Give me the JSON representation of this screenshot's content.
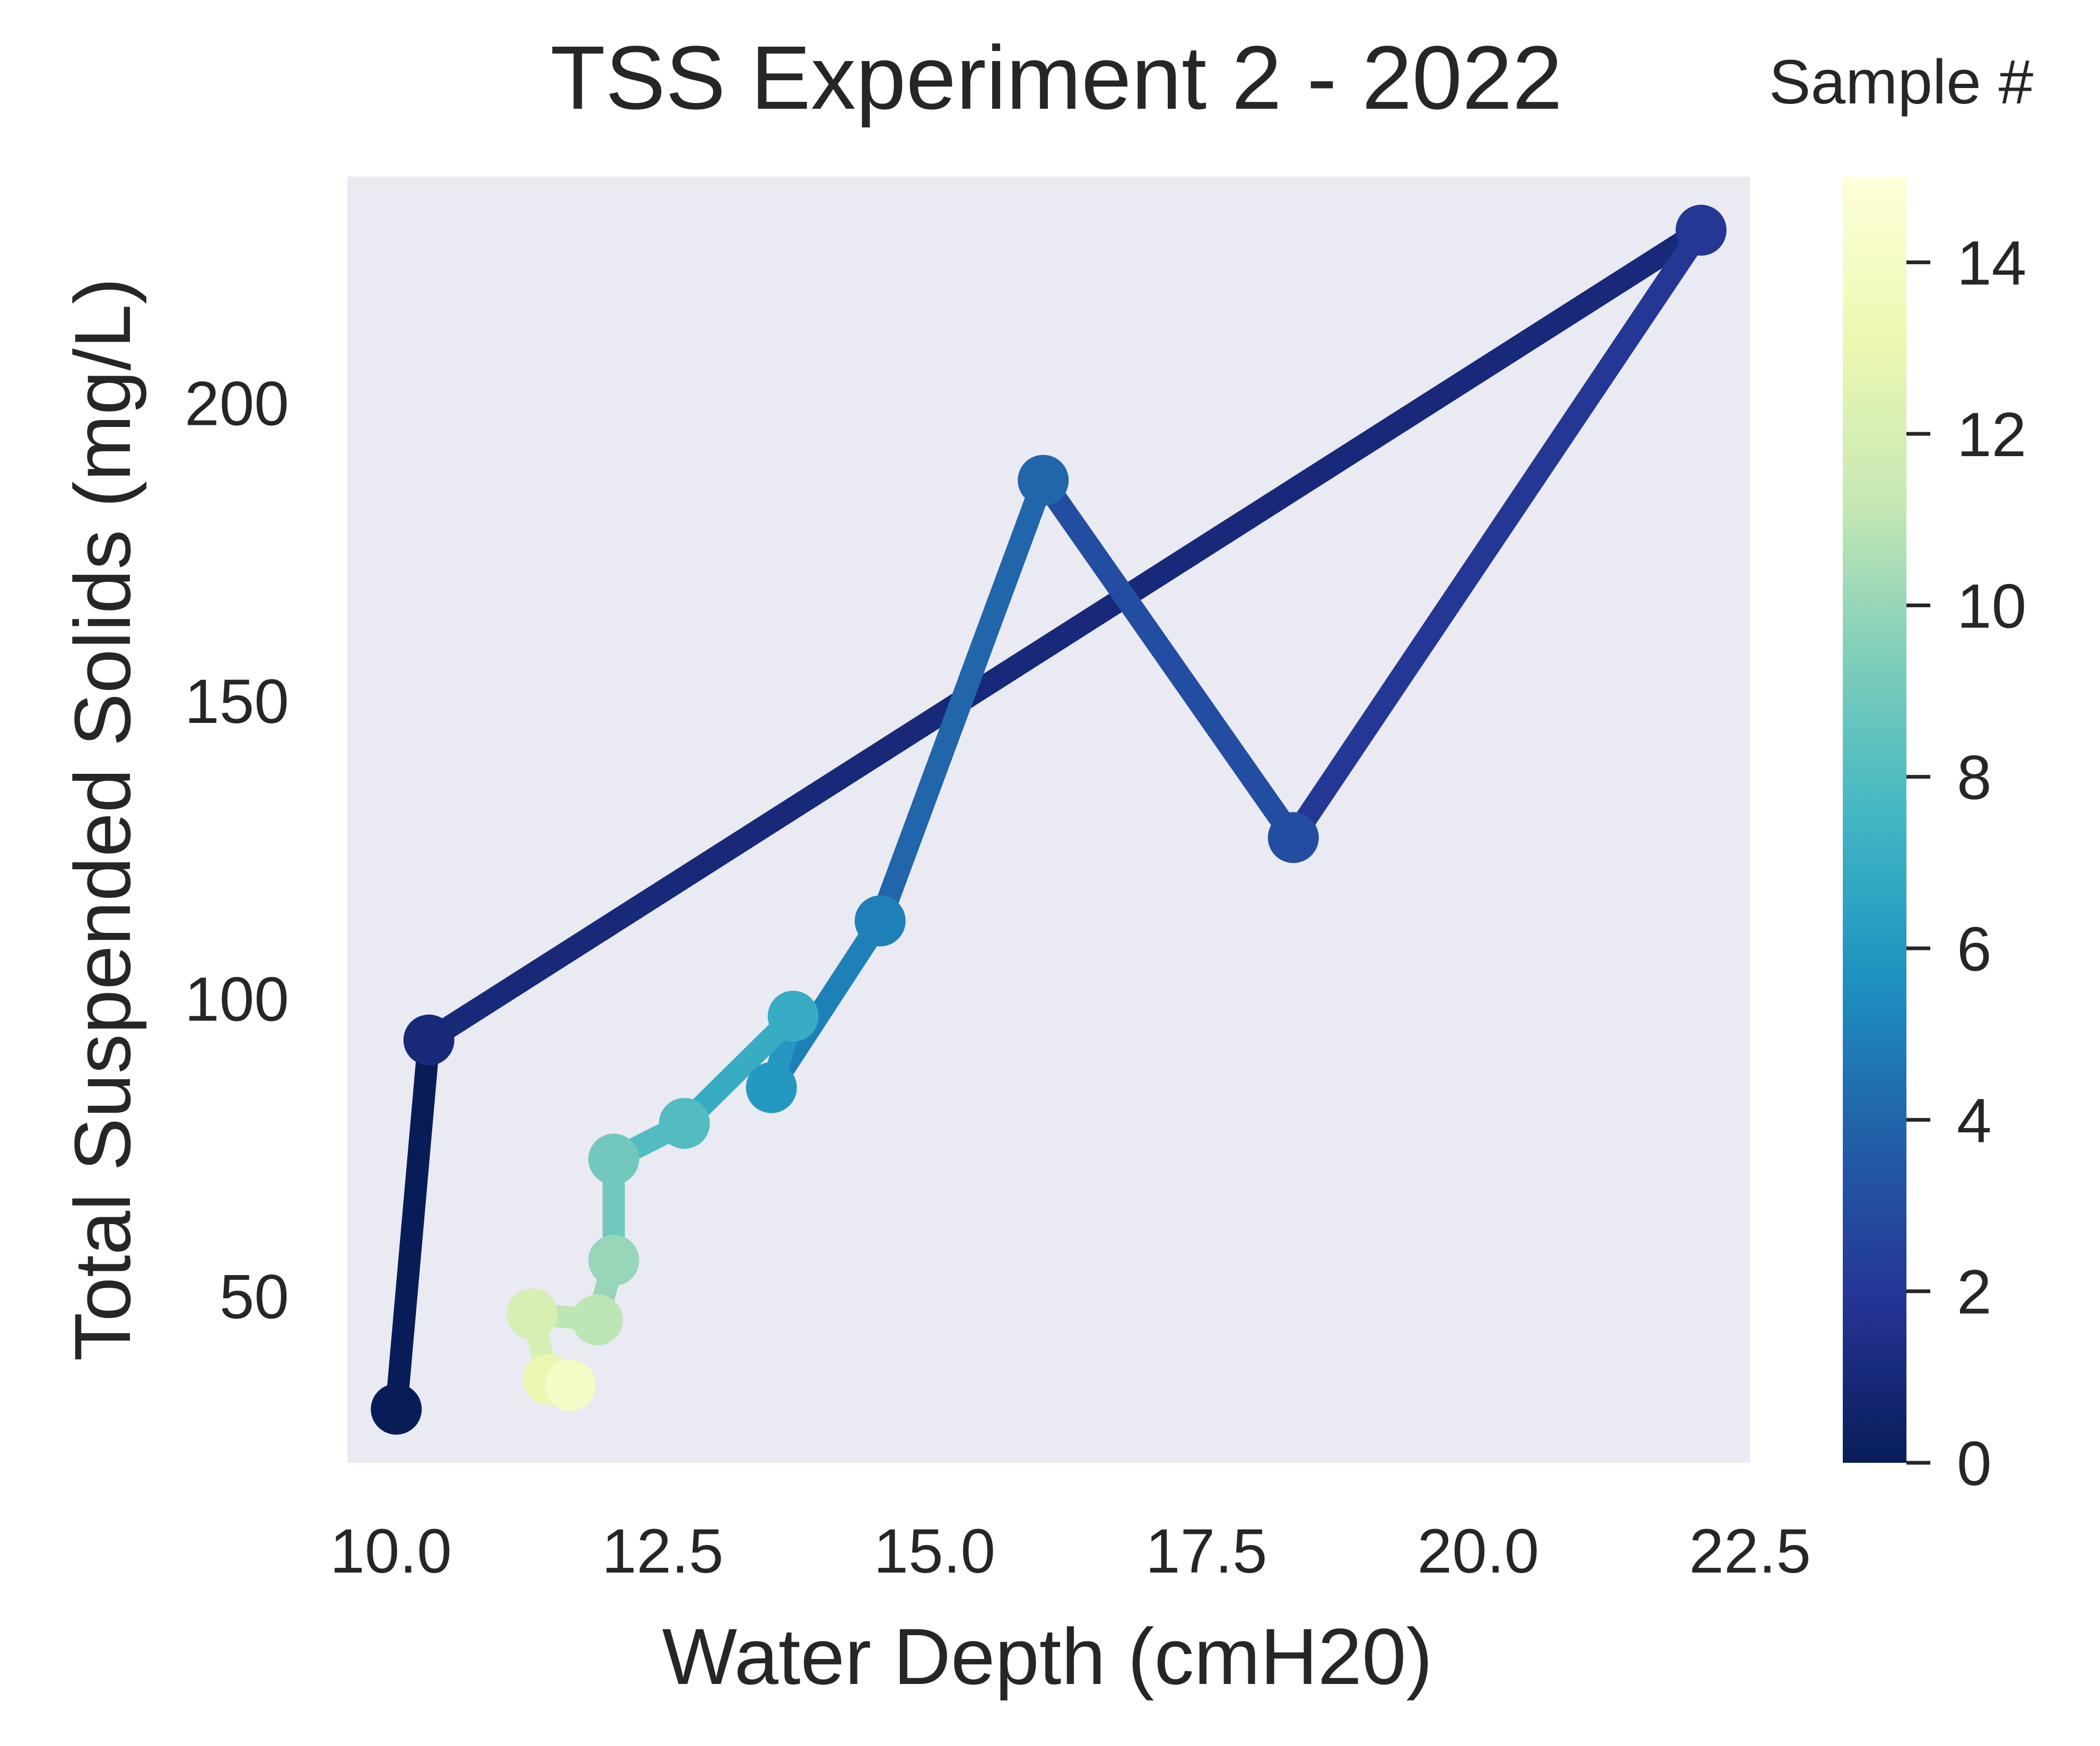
{
  "chart_data": {
    "type": "line",
    "title": "TSS Experiment 2 - 2022",
    "xlabel": "Water Depth (cmH20)",
    "ylabel": "Total Suspended Solids (mg/L)",
    "xlim": [
      9.6,
      22.5
    ],
    "ylim": [
      22,
      238
    ],
    "xticks": [
      "10.0",
      "12.5",
      "15.0",
      "17.5",
      "20.0",
      "22.5"
    ],
    "xtick_values": [
      10.0,
      12.5,
      15.0,
      17.5,
      20.0,
      22.5
    ],
    "yticks": [
      "50",
      "100",
      "150",
      "200"
    ],
    "ytick_values": [
      50,
      100,
      150,
      200
    ],
    "grid": false,
    "colormap": "YlGnBu_r",
    "colorbar": {
      "title": "Sample #",
      "range": [
        0,
        15
      ],
      "ticks": [
        "0",
        "2",
        "4",
        "6",
        "8",
        "10",
        "12",
        "14"
      ],
      "tick_values": [
        0,
        2,
        4,
        6,
        8,
        10,
        12,
        14
      ]
    },
    "series": [
      {
        "x": [
          10.05,
          10.35,
          22.05,
          18.3,
          16.0,
          14.5,
          13.5,
          13.7,
          12.7,
          12.05,
          12.05,
          11.9,
          11.3,
          11.45,
          11.65
        ],
        "y": [
          31,
          93,
          229,
          127,
          187,
          113,
          85,
          97,
          79,
          73,
          56,
          46,
          47,
          36,
          35
        ],
        "sample": [
          0,
          1,
          2,
          3,
          4,
          5,
          6,
          7,
          8,
          9,
          10,
          11,
          12,
          13,
          14
        ]
      }
    ],
    "colors": {
      "plot_background": "#eaeaf2",
      "text": "#262626",
      "colormap_stops": [
        "#081d58",
        "#253494",
        "#225ea8",
        "#1d91c0",
        "#41b6c4",
        "#7fcdbb",
        "#c7e9b4",
        "#edf8b1",
        "#ffffd9"
      ]
    }
  }
}
